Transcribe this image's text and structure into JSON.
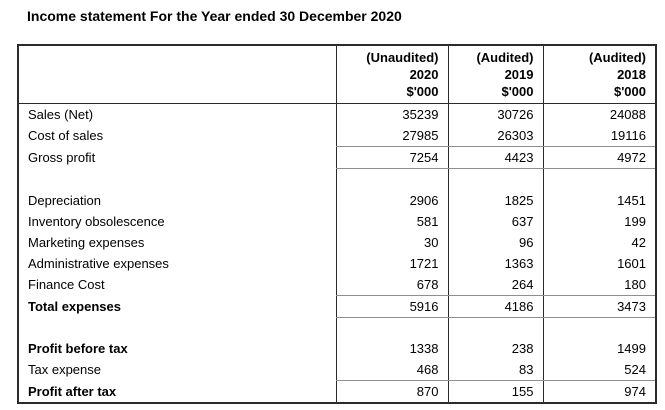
{
  "page_title": "Income statement For the Year ended 30 December 2020",
  "table": {
    "columns": [
      {
        "audit": "(Unaudited)",
        "year": "2020",
        "unit": "$'000"
      },
      {
        "audit": "(Audited)",
        "year": "2019",
        "unit": "$'000"
      },
      {
        "audit": "(Audited)",
        "year": "2018",
        "unit": "$'000"
      }
    ],
    "rows": [
      {
        "label": "Sales (Net)",
        "values": [
          "35239",
          "30726",
          "24088"
        ]
      },
      {
        "label": "Cost of sales",
        "values": [
          "27985",
          "26303",
          "19116"
        ]
      },
      {
        "label": "Gross profit",
        "values": [
          "7254",
          "4423",
          "4972"
        ]
      },
      {
        "label": "",
        "values": [
          "",
          "",
          ""
        ]
      },
      {
        "label": "Depreciation",
        "values": [
          "2906",
          "1825",
          "1451"
        ]
      },
      {
        "label": "Inventory obsolescence",
        "values": [
          "581",
          "637",
          "199"
        ]
      },
      {
        "label": "Marketing expenses",
        "values": [
          "30",
          "96",
          "42"
        ]
      },
      {
        "label": "Administrative expenses",
        "values": [
          "1721",
          "1363",
          "1601"
        ]
      },
      {
        "label": "Finance Cost",
        "values": [
          "678",
          "264",
          "180"
        ]
      },
      {
        "label": "Total expenses",
        "values": [
          "5916",
          "4186",
          "3473"
        ]
      },
      {
        "label": "",
        "values": [
          "",
          "",
          ""
        ]
      },
      {
        "label": "Profit before tax",
        "values": [
          "1338",
          "238",
          "1499"
        ]
      },
      {
        "label": "Tax expense",
        "values": [
          "468",
          "83",
          "524"
        ]
      },
      {
        "label": "Profit after tax",
        "values": [
          "870",
          "155",
          "974"
        ]
      }
    ]
  }
}
